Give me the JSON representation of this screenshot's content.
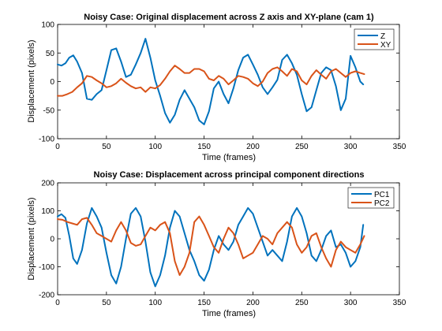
{
  "colors": {
    "series1": "#0072BD",
    "series2": "#D95319",
    "axis": "#000000",
    "background": "#ffffff"
  },
  "chart_data": [
    {
      "type": "line",
      "title": "Noisy Case: Original displacement across Z axis and XY-plane (cam 1)",
      "xlabel": "Time (frames)",
      "ylabel": "Displacement (pixels)",
      "xlim": [
        0,
        350
      ],
      "ylim": [
        -100,
        100
      ],
      "xticks": [
        0,
        50,
        100,
        150,
        200,
        250,
        300,
        350
      ],
      "yticks": [
        -100,
        -50,
        0,
        50,
        100
      ],
      "legend_position": "top-right",
      "series": [
        {
          "name": "Z",
          "color": "#0072BD",
          "x": [
            0,
            4,
            8,
            12,
            16,
            20,
            25,
            30,
            35,
            40,
            45,
            50,
            55,
            60,
            65,
            70,
            75,
            80,
            85,
            90,
            95,
            100,
            105,
            110,
            115,
            120,
            125,
            130,
            135,
            140,
            145,
            150,
            155,
            160,
            165,
            170,
            175,
            180,
            185,
            190,
            195,
            200,
            205,
            210,
            215,
            220,
            225,
            230,
            235,
            240,
            245,
            250,
            255,
            260,
            265,
            270,
            275,
            280,
            285,
            290,
            295,
            300,
            305,
            310,
            313
          ],
          "values": [
            30,
            28,
            32,
            42,
            46,
            35,
            15,
            -30,
            -32,
            -22,
            -15,
            20,
            55,
            58,
            35,
            8,
            12,
            30,
            50,
            75,
            42,
            2,
            -25,
            -55,
            -72,
            -58,
            -32,
            -15,
            -30,
            -45,
            -68,
            -75,
            -52,
            -12,
            0,
            -22,
            -38,
            -12,
            20,
            42,
            47,
            30,
            12,
            -10,
            -22,
            -10,
            3,
            38,
            47,
            32,
            12,
            -22,
            -52,
            -45,
            -15,
            15,
            25,
            20,
            -8,
            -50,
            -30,
            45,
            25,
            0,
            -5
          ]
        },
        {
          "name": "XY",
          "color": "#D95319",
          "x": [
            0,
            5,
            10,
            15,
            20,
            25,
            30,
            35,
            40,
            45,
            50,
            55,
            60,
            65,
            70,
            75,
            80,
            85,
            90,
            95,
            100,
            105,
            110,
            115,
            120,
            125,
            130,
            135,
            140,
            145,
            150,
            155,
            160,
            165,
            170,
            175,
            180,
            185,
            190,
            195,
            200,
            205,
            210,
            215,
            220,
            225,
            230,
            235,
            240,
            245,
            250,
            255,
            260,
            265,
            270,
            275,
            280,
            285,
            290,
            295,
            300,
            305,
            310,
            314
          ],
          "values": [
            -25,
            -25,
            -22,
            -18,
            -10,
            -3,
            10,
            8,
            2,
            -3,
            -10,
            -8,
            -3,
            5,
            -2,
            -8,
            -12,
            -10,
            -18,
            -10,
            -12,
            -6,
            5,
            18,
            28,
            22,
            15,
            15,
            22,
            22,
            18,
            5,
            2,
            10,
            5,
            -5,
            2,
            10,
            8,
            5,
            -3,
            -8,
            0,
            15,
            22,
            25,
            18,
            10,
            22,
            18,
            2,
            -5,
            10,
            20,
            12,
            5,
            18,
            22,
            15,
            8,
            15,
            18,
            15,
            13
          ]
        }
      ]
    },
    {
      "type": "line",
      "title": "Noisy Case: Displacement across principal component directions",
      "xlabel": "Time (frames)",
      "ylabel": "Displacement (pixels)",
      "xlim": [
        0,
        350
      ],
      "ylim": [
        -200,
        200
      ],
      "xticks": [
        0,
        50,
        100,
        150,
        200,
        250,
        300,
        350
      ],
      "yticks": [
        -200,
        -100,
        0,
        100,
        200
      ],
      "legend_position": "top-right",
      "series": [
        {
          "name": "PC1",
          "color": "#0072BD",
          "x": [
            0,
            4,
            8,
            12,
            16,
            20,
            25,
            30,
            35,
            40,
            45,
            50,
            55,
            60,
            65,
            70,
            75,
            80,
            85,
            90,
            95,
            100,
            105,
            110,
            115,
            120,
            125,
            130,
            135,
            140,
            145,
            150,
            155,
            160,
            165,
            170,
            175,
            180,
            185,
            190,
            195,
            200,
            205,
            210,
            215,
            220,
            225,
            230,
            235,
            240,
            245,
            250,
            255,
            260,
            265,
            270,
            275,
            280,
            285,
            290,
            295,
            300,
            305,
            310,
            313
          ],
          "values": [
            80,
            88,
            75,
            10,
            -70,
            -90,
            -40,
            55,
            110,
            80,
            40,
            -50,
            -130,
            -160,
            -100,
            0,
            90,
            110,
            80,
            -10,
            -120,
            -170,
            -130,
            -60,
            40,
            100,
            80,
            20,
            -40,
            -80,
            -130,
            -150,
            -110,
            -40,
            10,
            -20,
            -40,
            -10,
            50,
            80,
            110,
            90,
            40,
            -10,
            -60,
            -40,
            -60,
            -80,
            -10,
            80,
            110,
            80,
            20,
            -60,
            -80,
            -40,
            10,
            30,
            -30,
            -20,
            -50,
            -100,
            -80,
            -30,
            50
          ]
        },
        {
          "name": "PC2",
          "color": "#D95319",
          "x": [
            0,
            5,
            10,
            15,
            20,
            25,
            30,
            35,
            40,
            45,
            50,
            55,
            60,
            65,
            70,
            75,
            80,
            85,
            90,
            95,
            100,
            105,
            110,
            115,
            120,
            125,
            130,
            135,
            140,
            145,
            150,
            155,
            160,
            165,
            170,
            175,
            180,
            185,
            190,
            195,
            200,
            205,
            210,
            215,
            220,
            225,
            230,
            235,
            240,
            245,
            250,
            255,
            260,
            265,
            270,
            275,
            280,
            285,
            290,
            295,
            300,
            305,
            310,
            314
          ],
          "values": [
            70,
            68,
            60,
            55,
            50,
            70,
            75,
            50,
            20,
            10,
            0,
            -10,
            30,
            60,
            30,
            -15,
            -25,
            -20,
            10,
            40,
            30,
            50,
            60,
            20,
            -80,
            -130,
            -100,
            -50,
            60,
            80,
            50,
            10,
            -30,
            -50,
            0,
            40,
            20,
            -20,
            -70,
            -60,
            -50,
            -20,
            10,
            0,
            -20,
            20,
            40,
            60,
            40,
            -20,
            -50,
            -30,
            10,
            20,
            -30,
            -70,
            -100,
            -40,
            -10,
            -30,
            -40,
            -50,
            -20,
            10
          ]
        }
      ]
    }
  ]
}
